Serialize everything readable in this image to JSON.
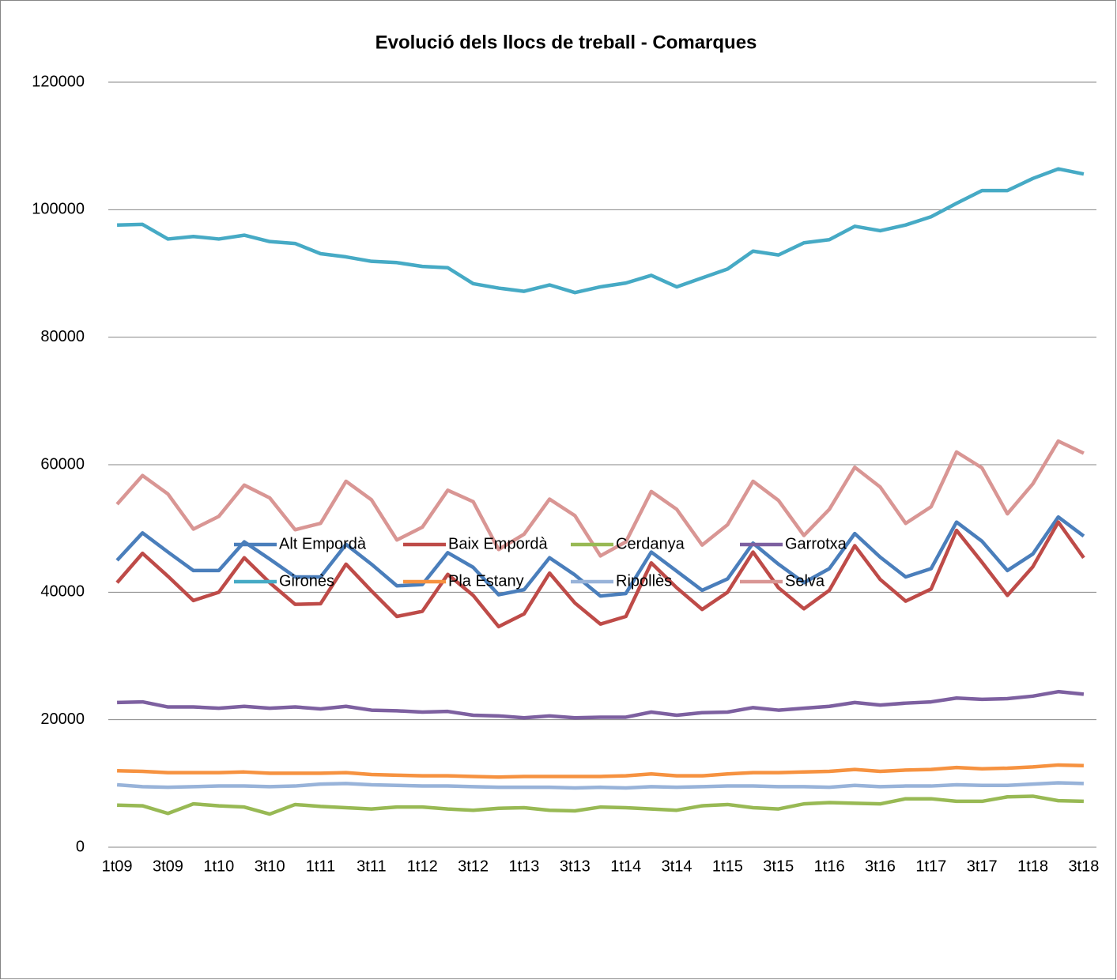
{
  "chart_data": {
    "type": "line",
    "title": "Evolució dels llocs de treball - Comarques",
    "categories": [
      "1t09",
      null,
      "3t09",
      null,
      "1t10",
      null,
      "3t10",
      null,
      "1t11",
      null,
      "3t11",
      null,
      "1t12",
      null,
      "3t12",
      null,
      "1t13",
      null,
      "3t13",
      null,
      "1t14",
      null,
      "3t14",
      null,
      "1t15",
      null,
      "3t15",
      null,
      "1t16",
      null,
      "3t16",
      null,
      "1t17",
      null,
      "3t17",
      null,
      "1t18",
      null,
      "3t18"
    ],
    "series": [
      {
        "name": "Alt Empordà",
        "color": "#4a7ebb",
        "values": [
          45000,
          49300,
          46300,
          43400,
          43400,
          47900,
          45200,
          42400,
          42400,
          47500,
          44400,
          41000,
          41200,
          46200,
          43900,
          39600,
          40400,
          45400,
          42700,
          39400,
          39800,
          46300,
          43300,
          40300,
          42100,
          47700,
          44400,
          41500,
          43700,
          49200,
          45500,
          42400,
          43700,
          51000,
          48000,
          43400,
          46000,
          51800,
          48800
        ]
      },
      {
        "name": "Baix Empordà",
        "color": "#be4b48",
        "values": [
          41500,
          46100,
          42500,
          38700,
          40000,
          45400,
          41500,
          38100,
          38200,
          44400,
          40200,
          36200,
          37000,
          42800,
          39500,
          34600,
          36600,
          43000,
          38300,
          35000,
          36200,
          44600,
          40700,
          37300,
          40000,
          46300,
          40700,
          37400,
          40300,
          47300,
          42000,
          38600,
          40500,
          49700,
          44700,
          39500,
          44000,
          51000,
          45400
        ]
      },
      {
        "name": "Cerdanya",
        "color": "#98b954",
        "values": [
          6600,
          6500,
          5300,
          6800,
          6500,
          6300,
          5200,
          6700,
          6400,
          6200,
          6000,
          6300,
          6300,
          6000,
          5800,
          6100,
          6200,
          5800,
          5700,
          6300,
          6200,
          6000,
          5800,
          6500,
          6700,
          6200,
          6000,
          6800,
          7000,
          6900,
          6800,
          7600,
          7600,
          7200,
          7200,
          7900,
          8000,
          7300,
          7200
        ]
      },
      {
        "name": "Garrotxa",
        "color": "#7d60a0",
        "values": [
          22700,
          22800,
          22000,
          22000,
          21800,
          22100,
          21800,
          22000,
          21700,
          22100,
          21500,
          21400,
          21200,
          21300,
          20700,
          20600,
          20300,
          20600,
          20300,
          20400,
          20400,
          21200,
          20700,
          21100,
          21200,
          21900,
          21500,
          21800,
          22100,
          22700,
          22300,
          22600,
          22800,
          23400,
          23200,
          23300,
          23700,
          24400,
          24000
        ]
      },
      {
        "name": "Gironès",
        "color": "#46aac5",
        "values": [
          97600,
          97700,
          95400,
          95800,
          95400,
          96000,
          95000,
          94700,
          93100,
          92600,
          91900,
          91700,
          91100,
          90900,
          88400,
          87700,
          87200,
          88200,
          87000,
          87900,
          88500,
          89700,
          87900,
          89300,
          90700,
          93500,
          92900,
          94800,
          95300,
          97400,
          96700,
          97600,
          98900,
          101000,
          103000,
          103000,
          104900,
          106400,
          105600
        ]
      },
      {
        "name": "Pla Estany",
        "color": "#f69240",
        "values": [
          12000,
          11900,
          11700,
          11700,
          11700,
          11800,
          11600,
          11600,
          11600,
          11700,
          11400,
          11300,
          11200,
          11200,
          11100,
          11000,
          11100,
          11100,
          11100,
          11100,
          11200,
          11500,
          11200,
          11200,
          11500,
          11700,
          11700,
          11800,
          11900,
          12200,
          11900,
          12100,
          12200,
          12500,
          12300,
          12400,
          12600,
          12900,
          12800
        ]
      },
      {
        "name": "Ripollès",
        "color": "#98b3d9",
        "values": [
          9800,
          9500,
          9400,
          9500,
          9600,
          9600,
          9500,
          9600,
          9900,
          10000,
          9800,
          9700,
          9600,
          9600,
          9500,
          9400,
          9400,
          9400,
          9300,
          9400,
          9300,
          9500,
          9400,
          9500,
          9600,
          9600,
          9500,
          9500,
          9400,
          9700,
          9500,
          9600,
          9600,
          9800,
          9700,
          9700,
          9900,
          10100,
          10000
        ]
      },
      {
        "name": "Selva",
        "color": "#d99694",
        "values": [
          53800,
          58300,
          55400,
          49900,
          51900,
          56800,
          54800,
          49800,
          50800,
          57400,
          54500,
          48200,
          50200,
          56000,
          54200,
          46700,
          49100,
          54600,
          52000,
          45700,
          47900,
          55800,
          53000,
          47400,
          50600,
          57400,
          54400,
          48900,
          53000,
          59600,
          56500,
          50800,
          53400,
          62000,
          59500,
          52300,
          57000,
          63700,
          61800
        ]
      }
    ],
    "ylim": [
      0,
      120000
    ],
    "yticks": [
      0,
      20000,
      40000,
      60000,
      80000,
      100000,
      120000
    ],
    "grid": true,
    "legend": "bottom"
  }
}
